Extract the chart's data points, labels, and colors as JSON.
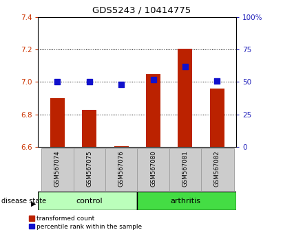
{
  "title": "GDS5243 / 10414775",
  "samples": [
    "GSM567074",
    "GSM567075",
    "GSM567076",
    "GSM567080",
    "GSM567081",
    "GSM567082"
  ],
  "groups": [
    "control",
    "control",
    "control",
    "arthritis",
    "arthritis",
    "arthritis"
  ],
  "transformed_count": [
    6.9,
    6.83,
    6.605,
    7.05,
    7.205,
    6.96
  ],
  "percentile_rank": [
    50,
    50,
    48,
    52,
    62,
    51
  ],
  "ylim_left": [
    6.6,
    7.4
  ],
  "ylim_right": [
    0,
    100
  ],
  "yticks_left": [
    6.6,
    6.8,
    7.0,
    7.2,
    7.4
  ],
  "yticks_right": [
    0,
    25,
    50,
    75,
    100
  ],
  "bar_color": "#bb2200",
  "dot_color": "#1111cc",
  "control_color": "#bbffbb",
  "arthritis_color": "#44dd44",
  "label_bg_color": "#cccccc",
  "ylabel_left_color": "#cc3300",
  "ylabel_right_color": "#2222bb",
  "bar_width": 0.45,
  "dot_size": 28,
  "base_value": 6.6
}
